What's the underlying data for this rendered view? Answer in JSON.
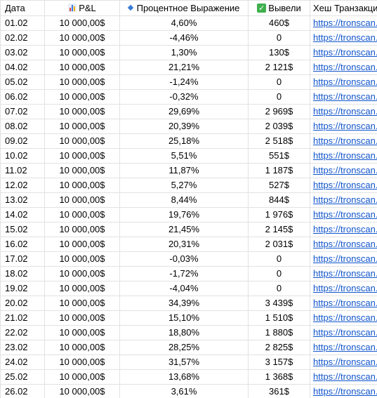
{
  "headers": {
    "date": "Дата",
    "pnl": "P&L",
    "pct": "Процентное Выражение",
    "out": "Вывели",
    "hash": "Хеш Транзакции"
  },
  "icons": {
    "pnl": "bar-chart-icon",
    "pct": "blue-diamond-icon",
    "out": "green-checkmark-icon"
  },
  "link_color": "#1155cc",
  "rows": [
    {
      "date": "01.02",
      "pnl": "10 000,00$",
      "pct": "4,60%",
      "out": "460$",
      "hash": "https://tronscan.or"
    },
    {
      "date": "02.02",
      "pnl": "10 000,00$",
      "pct": "-4,46%",
      "out": "0",
      "hash": "https://tronscan.or"
    },
    {
      "date": "03.02",
      "pnl": "10 000,00$",
      "pct": "1,30%",
      "out": "130$",
      "hash": "https://tronscan.or"
    },
    {
      "date": "04.02",
      "pnl": "10 000,00$",
      "pct": "21,21%",
      "out": "2 121$",
      "hash": "https://tronscan.or"
    },
    {
      "date": "05.02",
      "pnl": "10 000,00$",
      "pct": "-1,24%",
      "out": "0",
      "hash": "https://tronscan.or"
    },
    {
      "date": "06.02",
      "pnl": "10 000,00$",
      "pct": "-0,32%",
      "out": "0",
      "hash": "https://tronscan.or"
    },
    {
      "date": "07.02",
      "pnl": "10 000,00$",
      "pct": "29,69%",
      "out": "2 969$",
      "hash": "https://tronscan.or"
    },
    {
      "date": "08.02",
      "pnl": "10 000,00$",
      "pct": "20,39%",
      "out": "2 039$",
      "hash": "https://tronscan.or"
    },
    {
      "date": "09.02",
      "pnl": "10 000,00$",
      "pct": "25,18%",
      "out": "2 518$",
      "hash": "https://tronscan.or"
    },
    {
      "date": "10.02",
      "pnl": "10 000,00$",
      "pct": "5,51%",
      "out": "551$",
      "hash": "https://tronscan.or"
    },
    {
      "date": "11.02",
      "pnl": "10 000,00$",
      "pct": "11,87%",
      "out": "1 187$",
      "hash": "https://tronscan.or"
    },
    {
      "date": "12.02",
      "pnl": "10 000,00$",
      "pct": "5,27%",
      "out": "527$",
      "hash": "https://tronscan.or"
    },
    {
      "date": "13.02",
      "pnl": "10 000,00$",
      "pct": "8,44%",
      "out": "844$",
      "hash": "https://tronscan.or"
    },
    {
      "date": "14.02",
      "pnl": "10 000,00$",
      "pct": "19,76%",
      "out": "1 976$",
      "hash": "https://tronscan.or"
    },
    {
      "date": "15.02",
      "pnl": "10 000,00$",
      "pct": "21,45%",
      "out": "2 145$",
      "hash": "https://tronscan.or"
    },
    {
      "date": "16.02",
      "pnl": "10 000,00$",
      "pct": "20,31%",
      "out": "2 031$",
      "hash": "https://tronscan.or"
    },
    {
      "date": "17.02",
      "pnl": "10 000,00$",
      "pct": "-0,03%",
      "out": "0",
      "hash": "https://tronscan.or"
    },
    {
      "date": "18.02",
      "pnl": "10 000,00$",
      "pct": "-1,72%",
      "out": "0",
      "hash": "https://tronscan.or"
    },
    {
      "date": "19.02",
      "pnl": "10 000,00$",
      "pct": "-4,04%",
      "out": "0",
      "hash": "https://tronscan.or"
    },
    {
      "date": "20.02",
      "pnl": "10 000,00$",
      "pct": "34,39%",
      "out": "3 439$",
      "hash": "https://tronscan.or"
    },
    {
      "date": "21.02",
      "pnl": "10 000,00$",
      "pct": "15,10%",
      "out": "1 510$",
      "hash": "https://tronscan.or"
    },
    {
      "date": "22.02",
      "pnl": "10 000,00$",
      "pct": "18,80%",
      "out": "1 880$",
      "hash": "https://tronscan.or"
    },
    {
      "date": "23.02",
      "pnl": "10 000,00$",
      "pct": "28,25%",
      "out": "2 825$",
      "hash": "https://tronscan.or"
    },
    {
      "date": "24.02",
      "pnl": "10 000,00$",
      "pct": "31,57%",
      "out": "3 157$",
      "hash": "https://tronscan.or"
    },
    {
      "date": "25.02",
      "pnl": "10 000,00$",
      "pct": "13,68%",
      "out": "1 368$",
      "hash": "https://tronscan.or"
    },
    {
      "date": "26.02",
      "pnl": "10 000,00$",
      "pct": "3,61%",
      "out": "361$",
      "hash": "https://tronscan.or"
    }
  ]
}
